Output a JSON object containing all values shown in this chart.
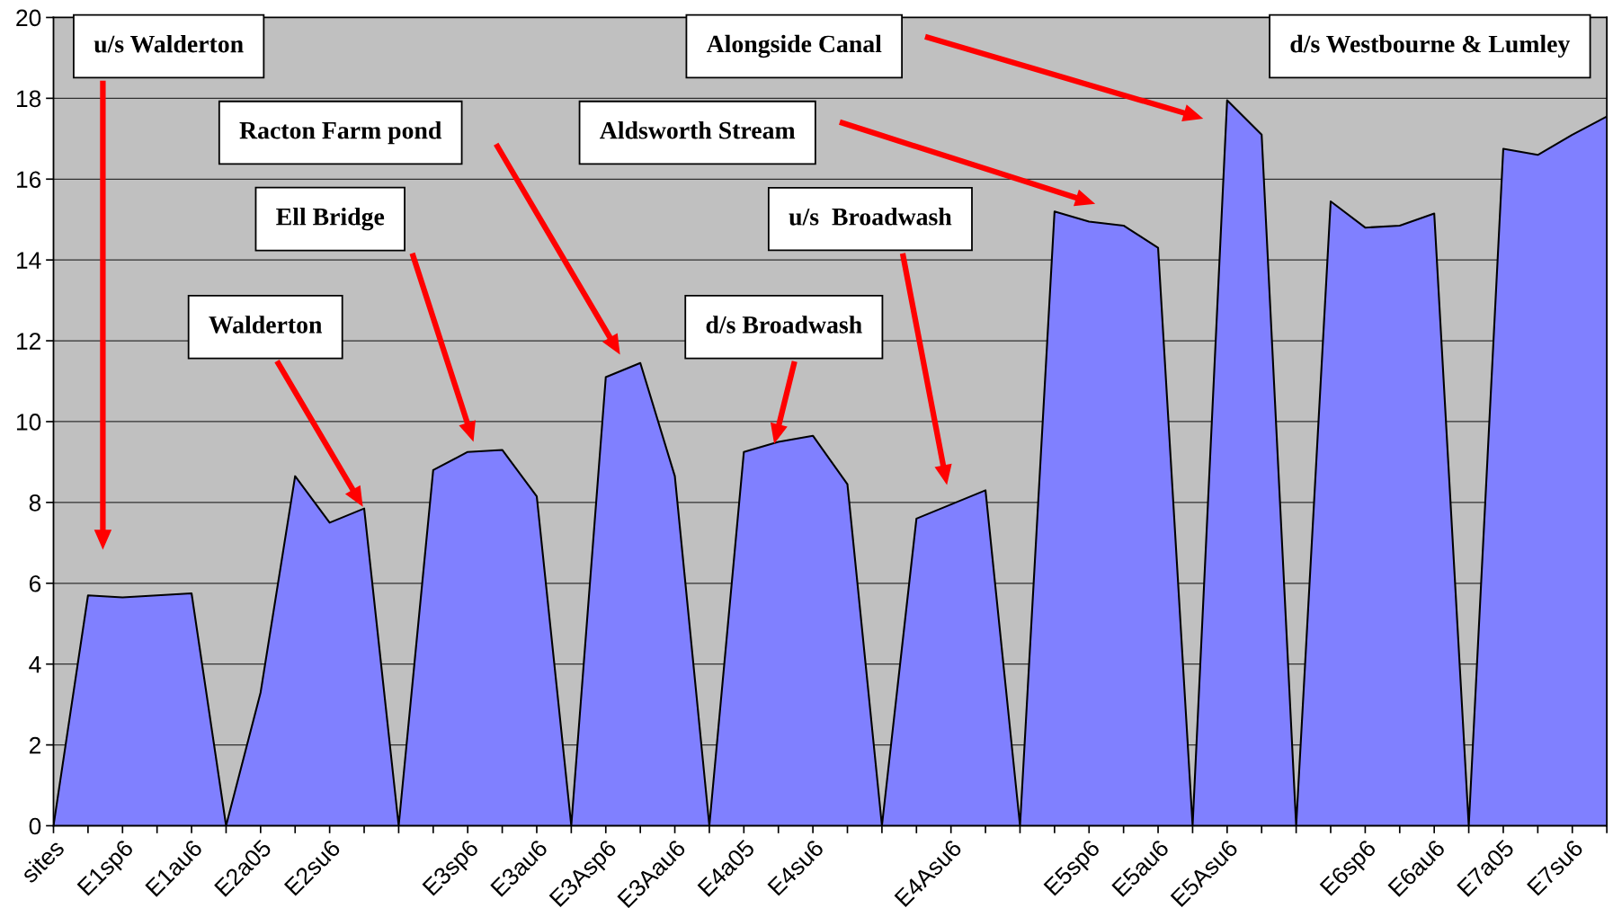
{
  "chart_data": {
    "type": "area",
    "categories": [
      "sites",
      null,
      "E1sp6",
      null,
      "E1au6",
      null,
      "E2a05",
      null,
      "E2su6",
      null,
      null,
      null,
      "E3sp6",
      null,
      "E3au6",
      null,
      "E3Asp6",
      null,
      "E3Aau6",
      null,
      "E4a05",
      null,
      "E4su6",
      null,
      null,
      null,
      "E4Asu6",
      null,
      null,
      null,
      "E5sp6",
      null,
      "E5au6",
      null,
      "E5Asu6",
      null,
      null,
      null,
      "E6sp6",
      null,
      "E6au6",
      null,
      "E7a05",
      null,
      "E7su6",
      null
    ],
    "series": [
      {
        "color": "#8080ff",
        "values": [
          0,
          5.7,
          5.65,
          5.7,
          5.75,
          0,
          3.3,
          8.65,
          7.5,
          7.85,
          0,
          8.8,
          9.25,
          9.3,
          8.15,
          0,
          11.1,
          11.45,
          8.65,
          0,
          9.25,
          9.5,
          9.65,
          8.45,
          0,
          7.6,
          7.95,
          8.3,
          0,
          15.2,
          14.95,
          14.85,
          14.3,
          0,
          17.95,
          17.1,
          0,
          15.45,
          14.8,
          14.85,
          15.15,
          0,
          16.75,
          16.6,
          17.1,
          17.55
        ]
      }
    ],
    "ylim": [
      0,
      20
    ],
    "yticks": [
      0,
      2,
      4,
      6,
      8,
      10,
      12,
      14,
      16,
      18,
      20
    ],
    "grid": "y",
    "annotations": [
      "u/s Walderton",
      "Racton Farm pond",
      "Ell Bridge",
      "Walderton",
      "Alongside Canal",
      "Aldsworth Stream",
      "u/s  Broadwash",
      "d/s Broadwash",
      "d/s Westbourne & Lumley"
    ]
  }
}
